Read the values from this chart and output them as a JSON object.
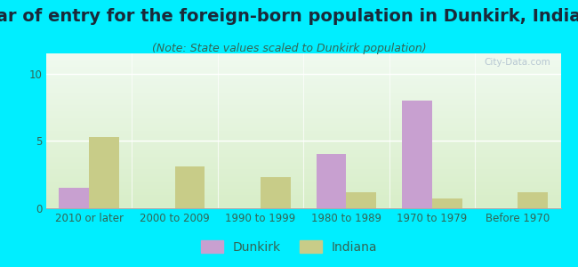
{
  "title": "Year of entry for the foreign-born population in Dunkirk, Indiana",
  "subtitle": "(Note: State values scaled to Dunkirk population)",
  "categories": [
    "2010 or later",
    "2000 to 2009",
    "1990 to 1999",
    "1980 to 1989",
    "1970 to 1979",
    "Before 1970"
  ],
  "dunkirk_values": [
    1.5,
    0,
    0,
    4.0,
    8.0,
    0
  ],
  "indiana_values": [
    5.3,
    3.1,
    2.3,
    1.2,
    0.75,
    1.2
  ],
  "dunkirk_color": "#c8a0d0",
  "indiana_color": "#c8cc88",
  "ylim": [
    0,
    11.5
  ],
  "yticks": [
    0,
    5,
    10
  ],
  "background_outer": "#00eeff",
  "background_top": "#f0faf0",
  "background_bottom": "#d8eec8",
  "bar_width": 0.35,
  "title_fontsize": 14,
  "subtitle_fontsize": 9,
  "tick_fontsize": 8.5,
  "legend_fontsize": 10,
  "title_color": "#1a2a3a",
  "subtitle_color": "#336655",
  "tick_color": "#336655",
  "watermark": "City-Data.com"
}
